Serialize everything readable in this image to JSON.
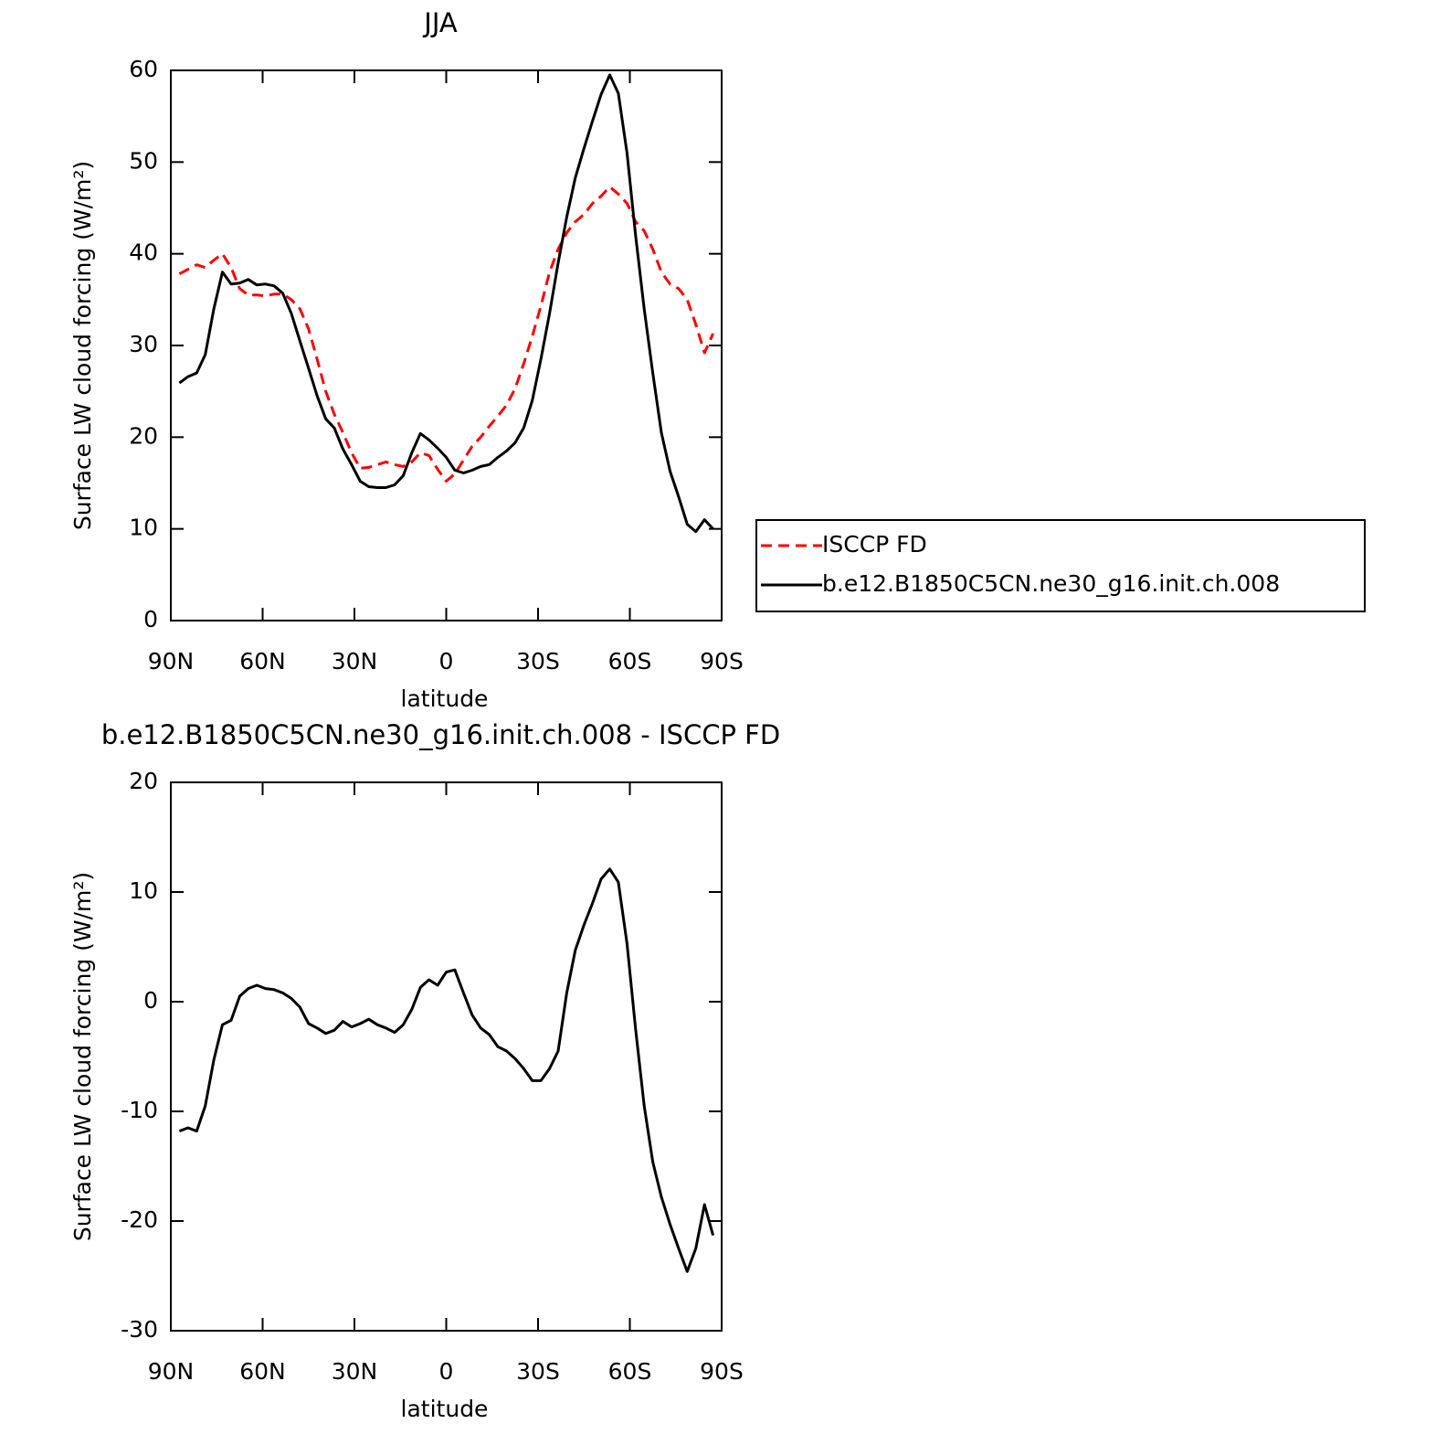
{
  "chart_data": [
    {
      "type": "line",
      "title": "JJA",
      "x_label": "latitude",
      "y_label": "Surface LW cloud forcing (W/m²)",
      "x": [
        87.19,
        84.38,
        81.56,
        78.75,
        75.94,
        73.13,
        70.31,
        67.5,
        64.69,
        61.88,
        59.06,
        56.25,
        53.44,
        50.63,
        47.81,
        45,
        42.19,
        39.38,
        36.56,
        33.75,
        30.94,
        28.13,
        25.31,
        22.5,
        19.69,
        16.88,
        14.06,
        11.25,
        8.44,
        5.63,
        2.81,
        0,
        -2.81,
        -5.63,
        -8.44,
        -11.25,
        -14.06,
        -16.88,
        -19.69,
        -22.5,
        -25.31,
        -28.13,
        -30.94,
        -33.75,
        -36.56,
        -39.38,
        -42.19,
        -45,
        -47.81,
        -50.63,
        -53.44,
        -56.25,
        -59.06,
        -61.88,
        -64.69,
        -67.5,
        -70.31,
        -73.13,
        -75.94,
        -78.75,
        -81.56,
        -84.38,
        -87.19
      ],
      "xlim": [
        90,
        -90
      ],
      "xticks": [
        {
          "value": 90,
          "label": "90N"
        },
        {
          "value": 60,
          "label": "60N"
        },
        {
          "value": 30,
          "label": "30N"
        },
        0,
        {
          "value": -30,
          "label": "30S"
        },
        {
          "value": -60,
          "label": "60S"
        },
        {
          "value": -90,
          "label": "90S"
        }
      ],
      "ylim": [
        0,
        60
      ],
      "yticks": [
        0,
        10,
        20,
        30,
        40,
        50,
        60
      ],
      "grid": false,
      "legend": "right",
      "series": [
        {
          "name": "ISCCP FD",
          "color": "#ff0000",
          "line_style": "dashed",
          "values": [
            37.8,
            38.3,
            38.8,
            38.5,
            39.3,
            40,
            38.5,
            36.2,
            35.5,
            35.5,
            35.4,
            35.6,
            35.6,
            35,
            34,
            31.8,
            28.5,
            25,
            22.5,
            20.5,
            18.3,
            16.6,
            16.7,
            17,
            17.3,
            17,
            16.8,
            17.3,
            18.3,
            18,
            16.5,
            15.2,
            16,
            17.5,
            19,
            20,
            21.2,
            22.3,
            23.5,
            25.3,
            28,
            31,
            34.3,
            38,
            40.5,
            42.3,
            43.5,
            44.3,
            45.5,
            46.3,
            47.3,
            46.5,
            45.5,
            43.5,
            42.5,
            40.5,
            38,
            36.7,
            36.2,
            35,
            32.3,
            29.2,
            31.3
          ]
        },
        {
          "name": "b.e12.B1850C5CN.ne30_g16.init.ch.008",
          "color": "#000000",
          "line_style": "solid",
          "values": [
            25.9,
            26.6,
            27,
            29,
            34,
            38,
            36.7,
            36.8,
            37.2,
            36.6,
            36.7,
            36.5,
            35.7,
            33.5,
            30.5,
            27.5,
            24.5,
            22,
            21,
            18.7,
            17,
            15.2,
            14.6,
            14.5,
            14.5,
            14.8,
            15.8,
            18.3,
            20.4,
            19.7,
            18.8,
            17.8,
            16.4,
            16.1,
            16.4,
            16.8,
            17,
            17.8,
            18.5,
            19.4,
            21,
            24,
            28.5,
            33.5,
            39,
            44,
            48.3,
            51.5,
            54.5,
            57.4,
            59.5,
            57.5,
            51,
            42,
            34,
            27,
            20.5,
            16.3,
            13.5,
            10.5,
            9.7,
            11,
            10
          ]
        }
      ]
    },
    {
      "type": "line",
      "title": "b.e12.B1850C5CN.ne30_g16.init.ch.008 - ISCCP FD",
      "x_label": "latitude",
      "y_label": "Surface LW cloud forcing (W/m²)",
      "x": [
        87.19,
        84.38,
        81.56,
        78.75,
        75.94,
        73.13,
        70.31,
        67.5,
        64.69,
        61.88,
        59.06,
        56.25,
        53.44,
        50.63,
        47.81,
        45,
        42.19,
        39.38,
        36.56,
        33.75,
        30.94,
        28.13,
        25.31,
        22.5,
        19.69,
        16.88,
        14.06,
        11.25,
        8.44,
        5.63,
        2.81,
        0,
        -2.81,
        -5.63,
        -8.44,
        -11.25,
        -14.06,
        -16.88,
        -19.69,
        -22.5,
        -25.31,
        -28.13,
        -30.94,
        -33.75,
        -36.56,
        -39.38,
        -42.19,
        -45,
        -47.81,
        -50.63,
        -53.44,
        -56.25,
        -59.06,
        -61.88,
        -64.69,
        -67.5,
        -70.31,
        -73.13,
        -75.94,
        -78.75,
        -81.56,
        -84.38,
        -87.19
      ],
      "xlim": [
        90,
        -90
      ],
      "xticks": [
        {
          "value": 90,
          "label": "90N"
        },
        {
          "value": 60,
          "label": "60N"
        },
        {
          "value": 30,
          "label": "30N"
        },
        0,
        {
          "value": -30,
          "label": "30S"
        },
        {
          "value": -60,
          "label": "60S"
        },
        {
          "value": -90,
          "label": "90S"
        }
      ],
      "ylim": [
        -30,
        20
      ],
      "yticks": [
        -30,
        -20,
        -10,
        0,
        10,
        20
      ],
      "grid": false,
      "series": [
        {
          "color": "#000000",
          "line_style": "solid",
          "values": [
            -11.8,
            -11.5,
            -11.8,
            -9.5,
            -5.3,
            -2.1,
            -1.7,
            0.5,
            1.2,
            1.5,
            1.2,
            1.1,
            0.8,
            0.3,
            -0.5,
            -2,
            -2.4,
            -2.9,
            -2.6,
            -1.8,
            -2.3,
            -2,
            -1.6,
            -2.1,
            -2.4,
            -2.8,
            -2.1,
            -0.7,
            1.3,
            2,
            1.5,
            2.7,
            2.9,
            0.8,
            -1.2,
            -2.4,
            -3,
            -4.1,
            -4.5,
            -5.2,
            -6.1,
            -7.2,
            -7.2,
            -6.1,
            -4.5,
            0.8,
            4.7,
            7,
            9,
            11.2,
            12.1,
            10.9,
            5.3,
            -2.5,
            -9.5,
            -14.6,
            -17.8,
            -20.3,
            -22.5,
            -24.6,
            -22.5,
            -18.5,
            -21.3
          ]
        }
      ]
    }
  ]
}
